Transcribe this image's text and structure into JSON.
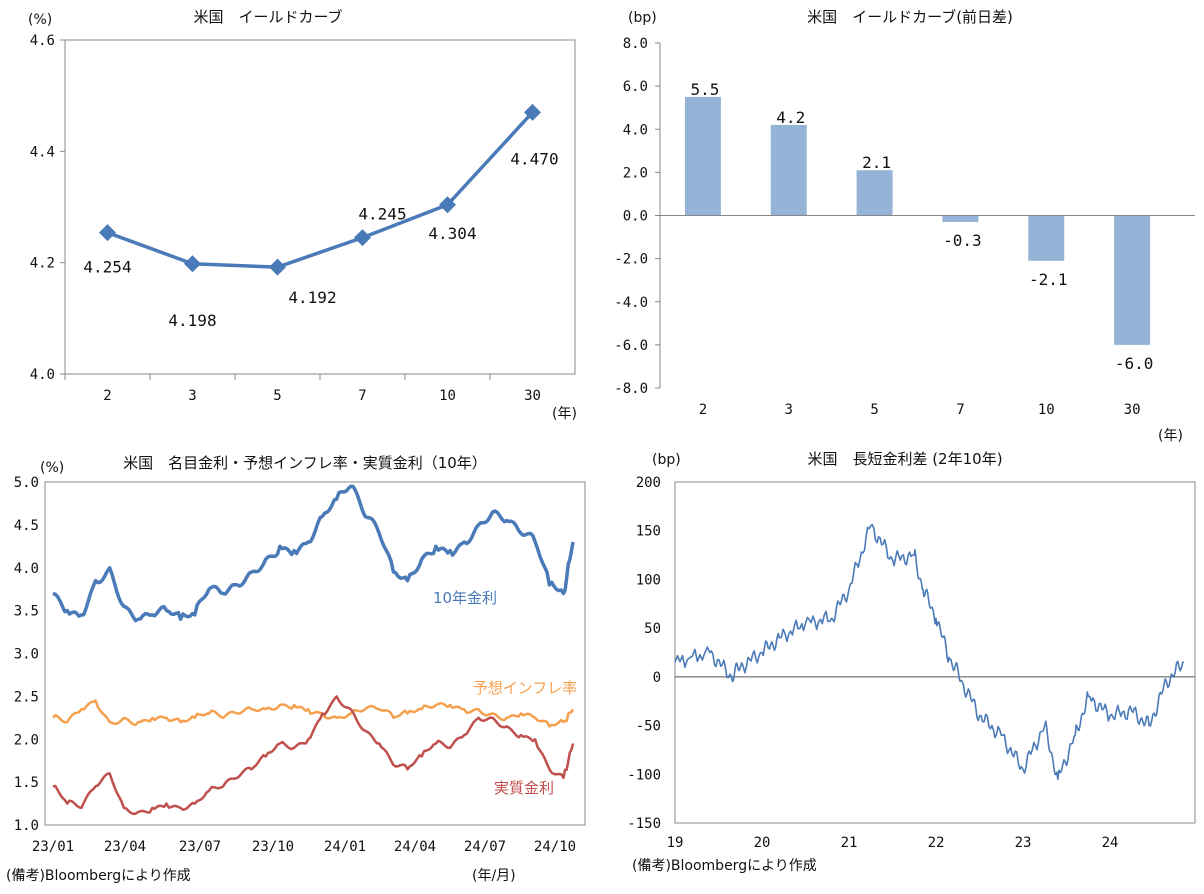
{
  "chart_data": [
    {
      "type": "line",
      "title": "米国　イールドカーブ",
      "ylabel": "(%)",
      "xlabel": "(年)",
      "categories": [
        "2",
        "3",
        "5",
        "7",
        "10",
        "30"
      ],
      "values": [
        4.254,
        4.198,
        4.192,
        4.245,
        4.304,
        4.47
      ],
      "data_labels": [
        "4.254",
        "4.198",
        "4.192",
        "4.245",
        "4.304",
        "4.470"
      ],
      "ylim": [
        4.0,
        4.6
      ],
      "yticks": [
        "4.0",
        "4.2",
        "4.4",
        "4.6"
      ],
      "color": "#4a7ab8"
    },
    {
      "type": "bar",
      "title": "米国　イールドカーブ(前日差)",
      "ylabel": "(bp)",
      "xlabel": "(年)",
      "categories": [
        "2",
        "3",
        "5",
        "7",
        "10",
        "30"
      ],
      "values": [
        5.5,
        4.2,
        2.1,
        -0.3,
        -2.1,
        -6.0
      ],
      "data_labels": [
        "5.5",
        "4.2",
        "2.1",
        "-0.3",
        "-2.1",
        "-6.0"
      ],
      "ylim": [
        -8.0,
        8.0
      ],
      "yticks": [
        "8.0",
        "6.0",
        "4.0",
        "2.0",
        "0.0",
        "-2.0",
        "-4.0",
        "-6.0",
        "-8.0"
      ],
      "color": "#95b3d7"
    },
    {
      "type": "line",
      "title": "米国　名目金利・予想インフレ率・実質金利（10年）",
      "ylabel": "(%)",
      "xlabel": "(年/月)",
      "ylim": [
        1.0,
        5.0
      ],
      "yticks": [
        "5.0",
        "4.5",
        "4.0",
        "3.5",
        "3.0",
        "2.5",
        "2.0",
        "1.5",
        "1.0"
      ],
      "xticks": [
        "23/01",
        "23/04",
        "23/07",
        "23/10",
        "24/01",
        "24/04",
        "24/07",
        "24/10"
      ],
      "x_months": [
        0,
        12,
        24,
        36,
        48,
        60,
        72,
        84,
        96,
        108,
        120,
        132,
        144,
        156,
        168,
        180,
        192,
        204,
        216,
        228,
        240,
        252,
        264,
        276,
        288,
        300,
        312,
        324,
        336,
        348,
        360,
        372,
        384,
        396,
        408,
        420,
        432,
        440
      ],
      "series": [
        {
          "name": "10年金利",
          "color": "#4a7ab8",
          "values": [
            3.7,
            3.5,
            3.45,
            3.85,
            4.0,
            3.55,
            3.4,
            3.45,
            3.5,
            3.4,
            3.45,
            3.75,
            3.7,
            3.8,
            3.95,
            4.1,
            4.25,
            4.2,
            4.3,
            4.6,
            4.8,
            4.95,
            4.6,
            4.4,
            3.95,
            3.85,
            4.1,
            4.25,
            4.2,
            4.3,
            4.5,
            4.65,
            4.55,
            4.4,
            4.3,
            3.8,
            3.7,
            4.3
          ]
        },
        {
          "name": "予想インフレ率",
          "color": "#f5a04e",
          "values": [
            2.25,
            2.2,
            2.35,
            2.45,
            2.2,
            2.25,
            2.2,
            2.25,
            2.25,
            2.2,
            2.25,
            2.3,
            2.25,
            2.3,
            2.35,
            2.35,
            2.4,
            2.4,
            2.35,
            2.3,
            2.25,
            2.3,
            2.35,
            2.35,
            2.25,
            2.3,
            2.35,
            2.4,
            2.4,
            2.35,
            2.35,
            2.3,
            2.25,
            2.3,
            2.25,
            2.15,
            2.2,
            2.35
          ]
        },
        {
          "name": "実質金利",
          "color": "#c0504d",
          "values": [
            1.45,
            1.25,
            1.2,
            1.45,
            1.6,
            1.2,
            1.15,
            1.2,
            1.25,
            1.2,
            1.25,
            1.4,
            1.45,
            1.55,
            1.65,
            1.8,
            1.95,
            1.9,
            2.0,
            2.3,
            2.5,
            2.35,
            2.1,
            1.95,
            1.7,
            1.65,
            1.8,
            1.95,
            1.9,
            2.05,
            2.25,
            2.25,
            2.15,
            2.05,
            2.0,
            1.65,
            1.55,
            1.95
          ]
        }
      ],
      "series_labels": [
        "10年金利",
        "予想インフレ率",
        "実質金利"
      ]
    },
    {
      "type": "line",
      "title": "米国　長短金利差 (2年10年)",
      "ylabel": "(bp)",
      "ylim": [
        -150,
        200
      ],
      "yticks": [
        "200",
        "150",
        "100",
        "50",
        "0",
        "-50",
        "-100",
        "-150"
      ],
      "xticks": [
        "19",
        "20",
        "21",
        "22",
        "23",
        "24"
      ],
      "x_years": [
        0.0,
        0.4,
        0.65,
        0.75,
        1.0,
        1.2,
        1.5,
        1.8,
        2.0,
        2.25,
        2.5,
        2.75,
        2.85,
        3.0,
        3.15,
        3.3,
        3.5,
        3.75,
        4.0,
        4.25,
        4.4,
        4.6,
        4.75,
        5.0,
        5.25,
        5.45,
        5.65,
        5.85
      ],
      "values": [
        15,
        25,
        0,
        10,
        25,
        40,
        55,
        60,
        90,
        155,
        120,
        125,
        90,
        60,
        20,
        -5,
        -40,
        -60,
        -95,
        -50,
        -105,
        -60,
        -20,
        -40,
        -35,
        -50,
        -5,
        15
      ],
      "color": "#4a7ab8"
    }
  ],
  "notes": {
    "source_left": "(備考)Bloombergにより作成",
    "source_right": "(備考)Bloombergにより作成"
  }
}
